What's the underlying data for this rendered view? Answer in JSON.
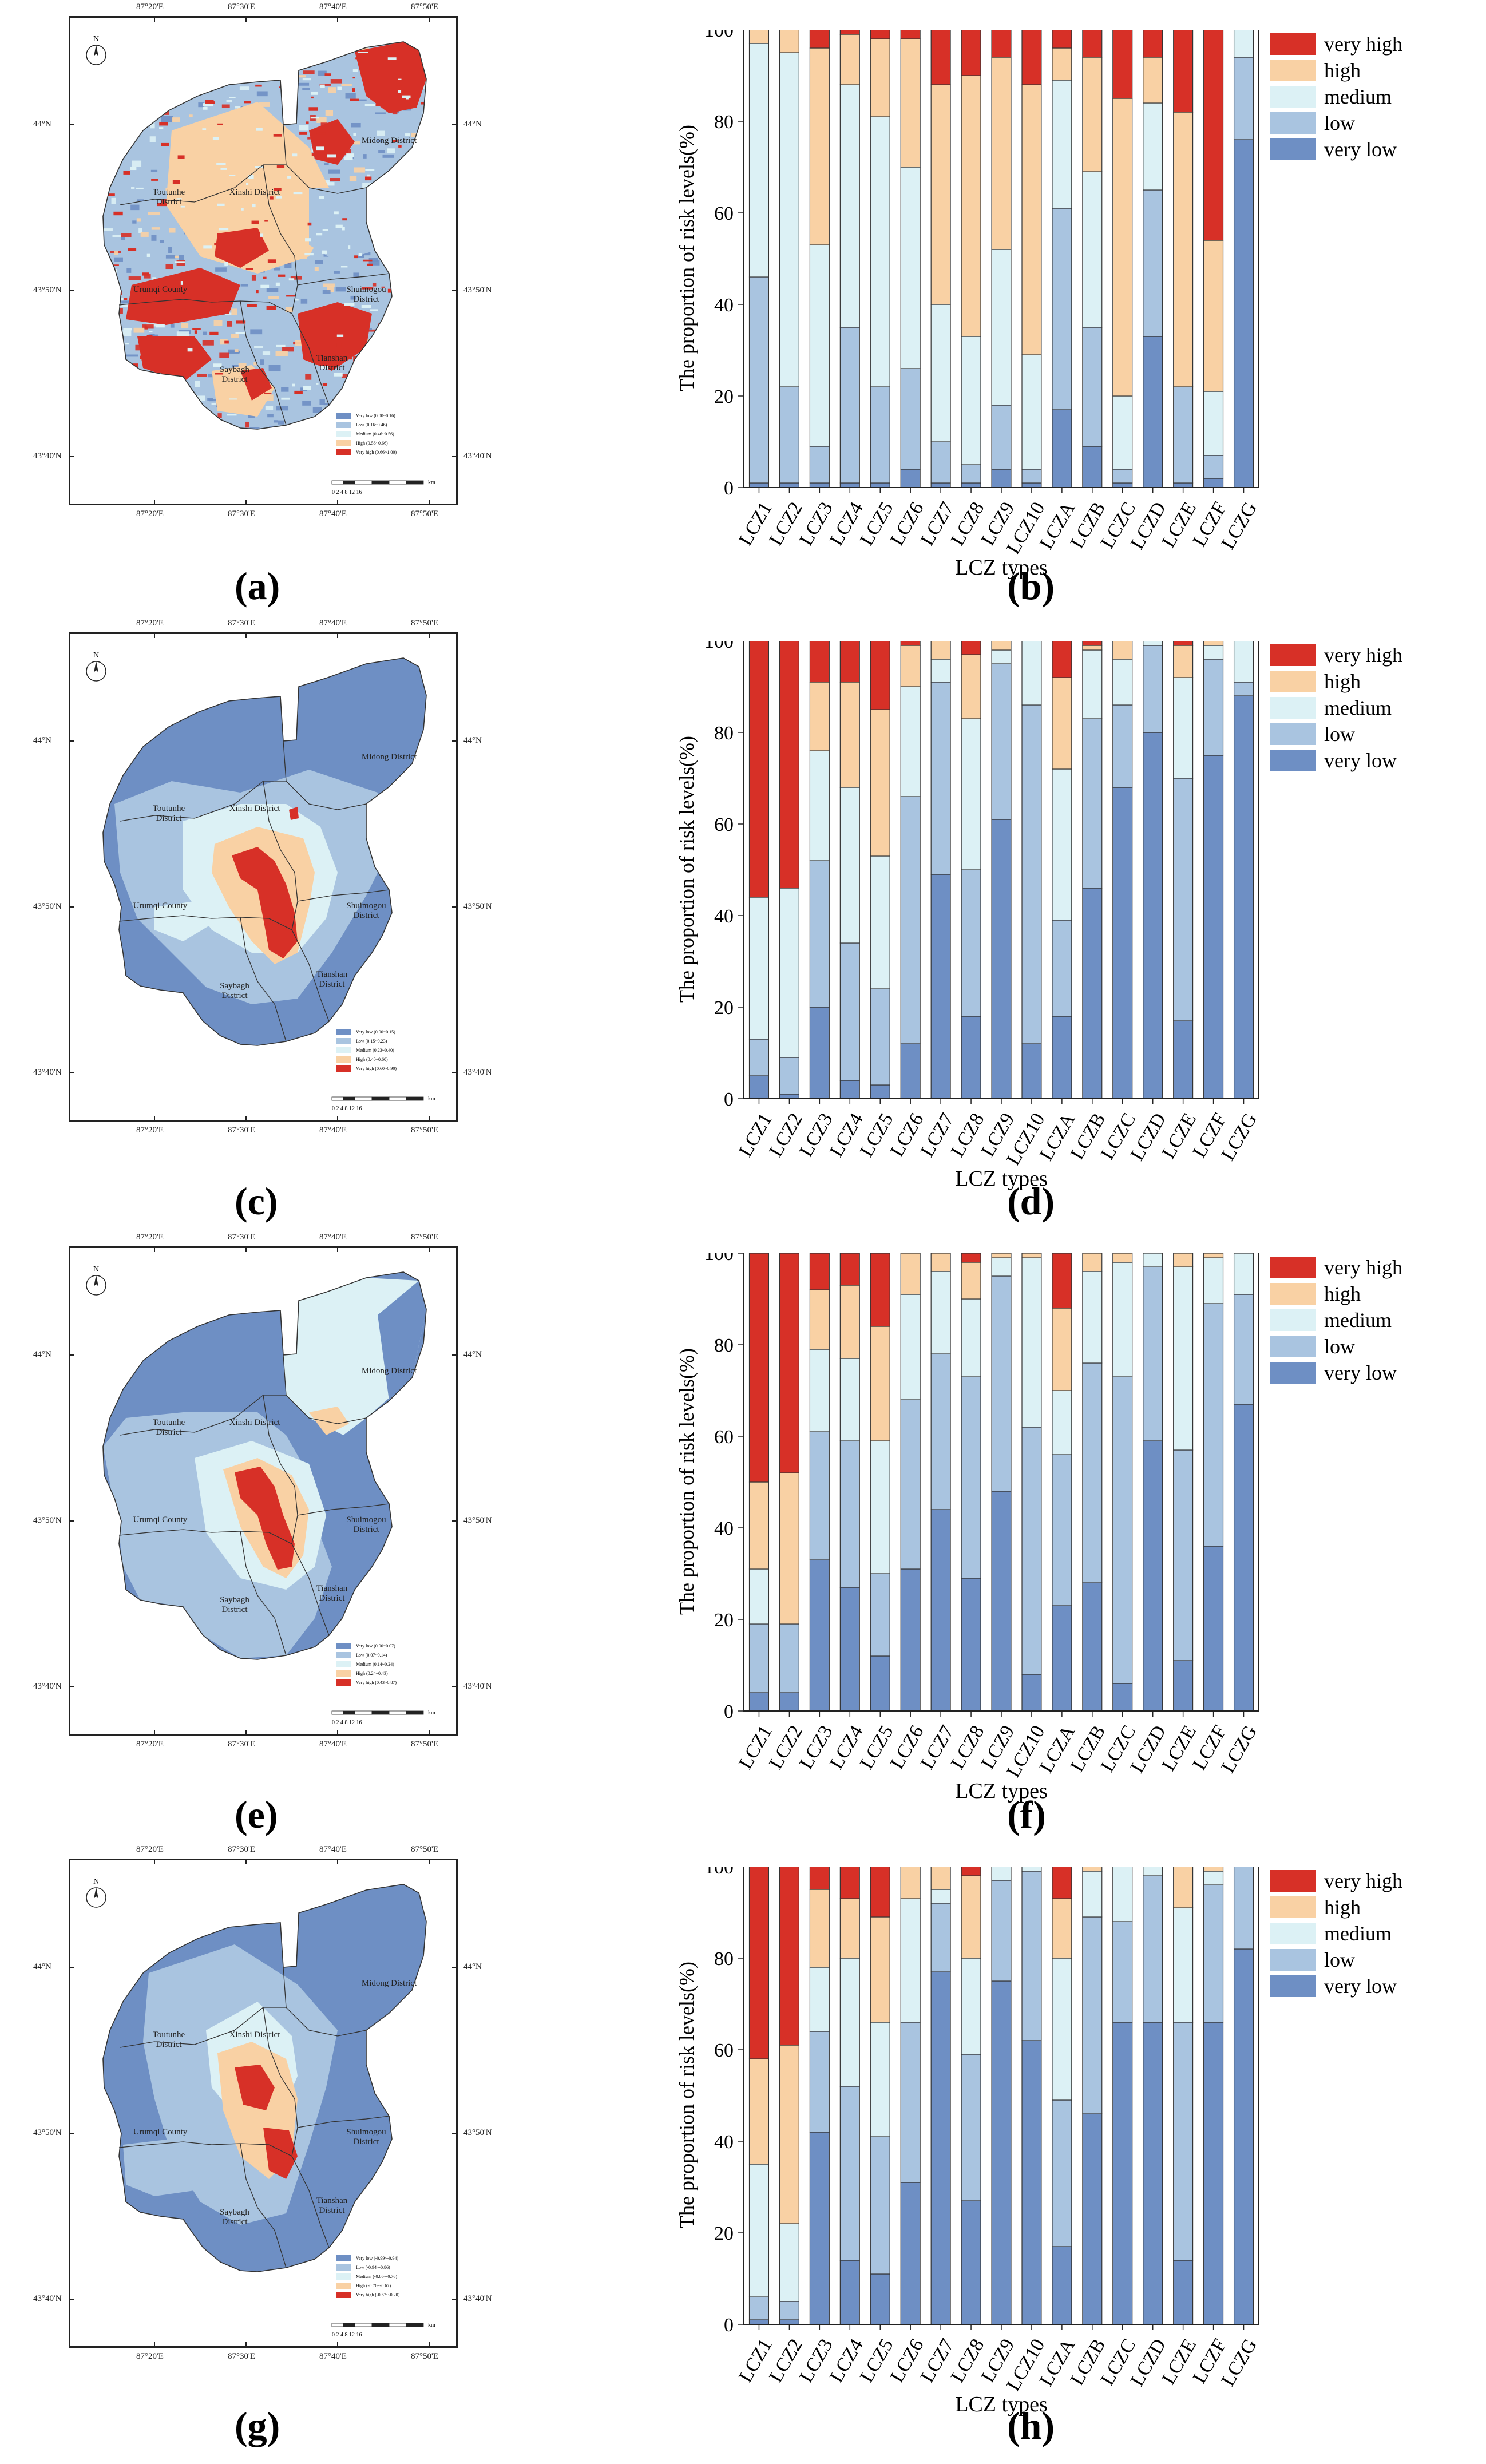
{
  "colors": {
    "very_high": "#d73027",
    "high": "#f9d1a4",
    "medium": "#dcf1f5",
    "low": "#a9c4e0",
    "very_low": "#6e8fc4"
  },
  "risk_levels": [
    "very high",
    "high",
    "medium",
    "low",
    "very low"
  ],
  "map_common": {
    "top_ticks": [
      "87°20'E",
      "87°30'E",
      "87°40'E",
      "87°50'E"
    ],
    "bottom_ticks": [
      "87°20'E",
      "87°30'E",
      "87°40'E",
      "87°50'E"
    ],
    "left_ticks": [
      "44°N",
      "43°50'N",
      "43°40'N"
    ],
    "right_ticks": [
      "44°N",
      "43°50'N",
      "43°40'N"
    ],
    "north": "N",
    "scale_numbers": "0  2  4      8      12      16",
    "scale_unit": "km",
    "districts": {
      "midong": "Midong District",
      "toutunhe": "Toutunhe District",
      "xinshi": "Xinshi District",
      "shuimogou": "Shuimogou District",
      "urumqi": "Urumqi County",
      "tianshan": "Tianshan District",
      "saybagh": "Saybagh District"
    }
  },
  "maps": [
    {
      "label": "(a)",
      "legend": [
        "Very low (0.00~0.16)",
        "Low (0.16~0.46)",
        "Medium (0.46~0.56)",
        "High (0.56~0.66)",
        "Very high (0.66~1.00)"
      ]
    },
    {
      "label": "(c)",
      "legend": [
        "Very low (0.00~0.15)",
        "Low (0.15~0.23)",
        "Medium (0.23~0.40)",
        "High (0.40~0.60)",
        "Very high (0.60~0.90)"
      ]
    },
    {
      "label": "(e)",
      "legend": [
        "Very low (0.00~0.07)",
        "Low (0.07~0.14)",
        "Medium (0.14~0.24)",
        "High (0.24~0.43)",
        "Very high (0.43~0.87)"
      ]
    },
    {
      "label": "(g)",
      "legend": [
        "Very low (-0.99~-0.94)",
        "Low (-0.94~-0.86)",
        "Medium (-0.86~-0.76)",
        "High (-0.76~-0.67)",
        "Very high (-0.67~-0.20)"
      ]
    }
  ],
  "chart_data": [
    {
      "label": "(b)",
      "type": "bar",
      "stacked": true,
      "xlabel": "LCZ types",
      "ylabel": "The proportion of risk levels(%)",
      "ylim": [
        0,
        100
      ],
      "yticks": [
        0,
        20,
        40,
        60,
        80,
        100
      ],
      "categories": [
        "LCZ1",
        "LCZ2",
        "LCZ3",
        "LCZ4",
        "LCZ5",
        "LCZ6",
        "LCZ7",
        "LCZ8",
        "LCZ9",
        "LCZ10",
        "LCZA",
        "LCZB",
        "LCZC",
        "LCZD",
        "LCZE",
        "LCZF",
        "LCZG"
      ],
      "series": [
        {
          "name": "very low",
          "values": [
            1,
            1,
            1,
            1,
            1,
            4,
            1,
            1,
            4,
            1,
            17,
            9,
            1,
            33,
            1,
            2,
            76
          ]
        },
        {
          "name": "low",
          "values": [
            45,
            21,
            8,
            34,
            21,
            22,
            9,
            4,
            14,
            3,
            44,
            26,
            3,
            32,
            21,
            5,
            18
          ]
        },
        {
          "name": "medium",
          "values": [
            51,
            73,
            44,
            53,
            59,
            44,
            30,
            28,
            34,
            25,
            28,
            34,
            16,
            19,
            0,
            14,
            6
          ]
        },
        {
          "name": "high",
          "values": [
            3,
            5,
            43,
            11,
            17,
            28,
            48,
            57,
            42,
            59,
            7,
            25,
            65,
            10,
            60,
            33,
            0
          ]
        },
        {
          "name": "very high",
          "values": [
            0,
            0,
            4,
            1,
            2,
            2,
            12,
            10,
            6,
            12,
            4,
            6,
            15,
            6,
            18,
            46,
            0
          ]
        }
      ]
    },
    {
      "label": "(d)",
      "type": "bar",
      "stacked": true,
      "xlabel": "LCZ types",
      "ylabel": "The proportion of risk levels(%)",
      "ylim": [
        0,
        100
      ],
      "yticks": [
        0,
        20,
        40,
        60,
        80,
        100
      ],
      "categories": [
        "LCZ1",
        "LCZ2",
        "LCZ3",
        "LCZ4",
        "LCZ5",
        "LCZ6",
        "LCZ7",
        "LCZ8",
        "LCZ9",
        "LCZ10",
        "LCZA",
        "LCZB",
        "LCZC",
        "LCZD",
        "LCZE",
        "LCZF",
        "LCZG"
      ],
      "series": [
        {
          "name": "very low",
          "values": [
            5,
            1,
            20,
            4,
            3,
            12,
            49,
            18,
            61,
            12,
            18,
            46,
            68,
            80,
            17,
            75,
            88
          ]
        },
        {
          "name": "low",
          "values": [
            8,
            8,
            32,
            30,
            21,
            54,
            42,
            32,
            34,
            74,
            21,
            37,
            18,
            19,
            53,
            21,
            3
          ]
        },
        {
          "name": "medium",
          "values": [
            31,
            37,
            24,
            34,
            29,
            24,
            5,
            33,
            3,
            14,
            33,
            15,
            10,
            1,
            22,
            3,
            9
          ]
        },
        {
          "name": "high",
          "values": [
            0,
            0,
            15,
            23,
            32,
            9,
            4,
            14,
            2,
            0,
            20,
            1,
            4,
            0,
            7,
            1,
            0
          ]
        },
        {
          "name": "very high",
          "values": [
            56,
            54,
            9,
            9,
            15,
            1,
            0,
            3,
            0,
            0,
            8,
            1,
            0,
            0,
            1,
            0,
            0
          ]
        }
      ]
    },
    {
      "label": "(f)",
      "type": "bar",
      "stacked": true,
      "xlabel": "LCZ types",
      "ylabel": "The proportion of risk levels(%)",
      "ylim": [
        0,
        100
      ],
      "yticks": [
        0,
        20,
        40,
        60,
        80,
        100
      ],
      "categories": [
        "LCZ1",
        "LCZ2",
        "LCZ3",
        "LCZ4",
        "LCZ5",
        "LCZ6",
        "LCZ7",
        "LCZ8",
        "LCZ9",
        "LCZ10",
        "LCZA",
        "LCZB",
        "LCZC",
        "LCZD",
        "LCZE",
        "LCZF",
        "LCZG"
      ],
      "series": [
        {
          "name": "very low",
          "values": [
            4,
            4,
            33,
            27,
            12,
            31,
            44,
            29,
            48,
            8,
            23,
            28,
            6,
            59,
            11,
            36,
            67
          ]
        },
        {
          "name": "low",
          "values": [
            15,
            15,
            28,
            32,
            18,
            37,
            34,
            44,
            47,
            54,
            33,
            48,
            67,
            38,
            46,
            53,
            24
          ]
        },
        {
          "name": "medium",
          "values": [
            12,
            0,
            18,
            18,
            29,
            23,
            18,
            17,
            4,
            37,
            14,
            20,
            25,
            3,
            40,
            10,
            9
          ]
        },
        {
          "name": "high",
          "values": [
            19,
            33,
            13,
            16,
            25,
            9,
            4,
            8,
            1,
            1,
            18,
            4,
            2,
            0,
            3,
            1,
            0
          ]
        },
        {
          "name": "very high",
          "values": [
            50,
            48,
            8,
            7,
            16,
            0,
            0,
            2,
            0,
            0,
            12,
            0,
            0,
            0,
            0,
            0,
            0
          ]
        }
      ]
    },
    {
      "label": "(h)",
      "type": "bar",
      "stacked": true,
      "xlabel": "LCZ types",
      "ylabel": "The proportion of risk levels(%)",
      "ylim": [
        0,
        100
      ],
      "yticks": [
        0,
        20,
        40,
        60,
        80,
        100
      ],
      "categories": [
        "LCZ1",
        "LCZ2",
        "LCZ3",
        "LCZ4",
        "LCZ5",
        "LCZ6",
        "LCZ7",
        "LCZ8",
        "LCZ9",
        "LCZ10",
        "LCZA",
        "LCZB",
        "LCZC",
        "LCZD",
        "LCZE",
        "LCZF",
        "LCZG"
      ],
      "series": [
        {
          "name": "very low",
          "values": [
            1,
            1,
            42,
            14,
            11,
            31,
            77,
            27,
            75,
            62,
            17,
            46,
            66,
            66,
            14,
            66,
            82
          ]
        },
        {
          "name": "low",
          "values": [
            5,
            4,
            22,
            38,
            30,
            35,
            15,
            32,
            22,
            37,
            32,
            43,
            22,
            32,
            52,
            30,
            18
          ]
        },
        {
          "name": "medium",
          "values": [
            29,
            17,
            14,
            28,
            25,
            27,
            3,
            21,
            3,
            1,
            31,
            10,
            12,
            2,
            25,
            3,
            0
          ]
        },
        {
          "name": "high",
          "values": [
            23,
            39,
            17,
            13,
            23,
            7,
            5,
            18,
            0,
            0,
            13,
            1,
            0,
            0,
            9,
            1,
            0
          ]
        },
        {
          "name": "very high",
          "values": [
            42,
            39,
            5,
            7,
            11,
            0,
            0,
            2,
            0,
            0,
            7,
            0,
            0,
            0,
            1,
            0,
            0
          ]
        }
      ]
    }
  ]
}
